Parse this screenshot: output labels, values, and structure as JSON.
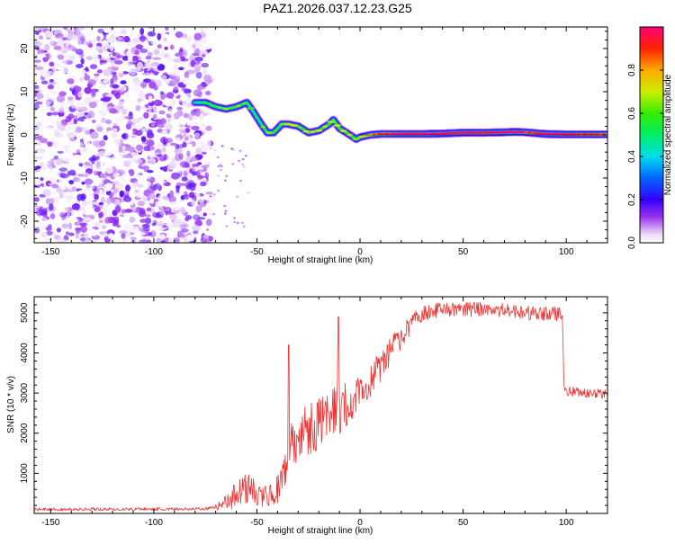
{
  "title": "PAZ1.2026.037.12.23.G25",
  "chart_data": [
    {
      "type": "heatmap",
      "name": "spectrogram",
      "xlabel": "Height of straight line (km)",
      "ylabel": "Frequency (Hz)",
      "xlim": [
        -158,
        120
      ],
      "ylim": [
        -25,
        25
      ],
      "xticks": [
        -150,
        -100,
        -50,
        0,
        50,
        100
      ],
      "yticks": [
        -20,
        -10,
        0,
        10,
        20
      ],
      "colorbar": {
        "label": "Normalized spectral amplitude",
        "range": [
          0,
          1
        ],
        "ticks": [
          0.0,
          0.2,
          0.4,
          0.6,
          0.8
        ],
        "colormap": "hsv-reversed (purple→blue→cyan→green→yellow→red→pink)"
      },
      "noise_region": {
        "x_range": [
          -158,
          -72
        ],
        "amplitude_range": [
          0.0,
          0.18
        ]
      },
      "ridge": {
        "x": [
          -80,
          -75,
          -70,
          -65,
          -60,
          -55,
          -52,
          -48,
          -45,
          -42,
          -38,
          -35,
          -30,
          -25,
          -20,
          -15,
          -13,
          -10,
          -5,
          -2,
          0,
          5,
          10,
          20,
          30,
          40,
          50,
          60,
          70,
          75,
          80,
          90,
          100,
          110,
          120
        ],
        "frequency": [
          7.5,
          7.5,
          6.5,
          6.0,
          6.5,
          7.5,
          5.5,
          2.5,
          0.5,
          0.5,
          2.5,
          2.5,
          2.0,
          0.5,
          1.0,
          2.5,
          3.5,
          1.5,
          0.0,
          -1.0,
          -0.5,
          0.0,
          0.2,
          0.2,
          0.2,
          0.3,
          0.5,
          0.5,
          0.6,
          0.7,
          0.6,
          0.2,
          0.1,
          0.1,
          0.1
        ],
        "amplitude": [
          0.35,
          0.45,
          0.45,
          0.55,
          0.5,
          0.55,
          0.45,
          0.5,
          0.55,
          0.5,
          0.55,
          0.6,
          0.55,
          0.6,
          0.6,
          0.6,
          0.55,
          0.6,
          0.6,
          0.55,
          0.65,
          0.7,
          0.8,
          0.9,
          0.9,
          0.95,
          0.9,
          0.9,
          0.9,
          0.95,
          0.85,
          0.95,
          0.9,
          0.85,
          0.8
        ]
      }
    },
    {
      "type": "line",
      "name": "snr",
      "xlabel": "Height of straight line (km)",
      "ylabel": "SNR (10 * v/v)",
      "xlim": [
        -158,
        120
      ],
      "ylim": [
        0,
        5400
      ],
      "xticks": [
        -150,
        -100,
        -50,
        0,
        50,
        100
      ],
      "yticks": [
        1000,
        2000,
        3000,
        4000,
        5000
      ],
      "color": "#ee3333",
      "envelope": {
        "x": [
          -158,
          -80,
          -72,
          -65,
          -60,
          -55,
          -50,
          -45,
          -40,
          -35,
          -33,
          -30,
          -25,
          -20,
          -15,
          -10,
          -5,
          0,
          5,
          10,
          15,
          20,
          25,
          30,
          35,
          40,
          50,
          60,
          70,
          80,
          90,
          98,
          99,
          100,
          110,
          120
        ],
        "base": [
          100,
          110,
          140,
          260,
          480,
          620,
          480,
          420,
          560,
          1400,
          1700,
          1900,
          2100,
          2200,
          2400,
          2600,
          2800,
          3100,
          3350,
          3650,
          4050,
          4400,
          4750,
          4950,
          5050,
          5080,
          5080,
          5080,
          5050,
          5000,
          4980,
          4980,
          3100,
          3050,
          3000,
          2980
        ],
        "noise": [
          40,
          40,
          50,
          200,
          350,
          400,
          320,
          300,
          400,
          700,
          700,
          600,
          700,
          700,
          700,
          650,
          550,
          500,
          450,
          400,
          350,
          300,
          250,
          200,
          200,
          180,
          180,
          180,
          180,
          180,
          180,
          180,
          120,
          120,
          120,
          120
        ]
      },
      "spikes": [
        {
          "x": -34.5,
          "y": 4200
        },
        {
          "x": -10.5,
          "y": 4900
        }
      ]
    }
  ]
}
